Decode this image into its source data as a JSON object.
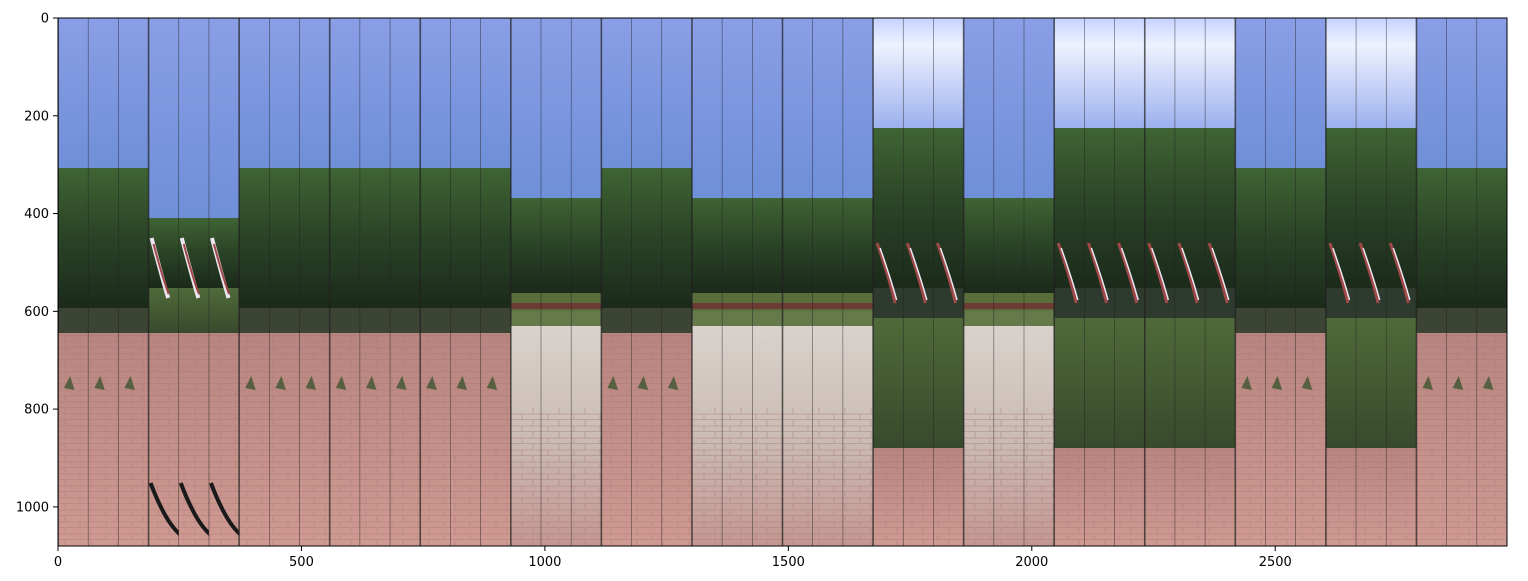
{
  "figure": {
    "x_axis": {
      "range": [
        0,
        2976
      ],
      "ticks": [
        0,
        500,
        1000,
        1500,
        2000,
        2500
      ],
      "tick_labels": [
        "0",
        "500",
        "1000",
        "1500",
        "2000",
        "2500"
      ]
    },
    "y_axis": {
      "range": [
        0,
        1080
      ],
      "inverted": true,
      "ticks": [
        0,
        200,
        400,
        600,
        800,
        1000
      ],
      "tick_labels": [
        "0",
        "200",
        "400",
        "600",
        "800",
        "1000"
      ]
    },
    "image_grid": {
      "groups": 16,
      "strips_per_group": 3,
      "group_kinds": [
        "brick",
        "flag",
        "brick",
        "brick",
        "brick",
        "path",
        "brick",
        "path",
        "path",
        "grass",
        "path",
        "grass",
        "grass",
        "brick",
        "grass",
        "brick"
      ]
    },
    "colors": {
      "sky_light": "#a9b8ee",
      "sky_blue": "#6f8fd8",
      "sky_bright": "#dfe6ff",
      "foliage_dark": "#1f3320",
      "foliage_mid": "#35552e",
      "grass": "#5a6e3c",
      "brick": "#c9928c",
      "path_light": "#d4cbc6",
      "flag_red": "#a04848",
      "axis": "#000000"
    }
  }
}
